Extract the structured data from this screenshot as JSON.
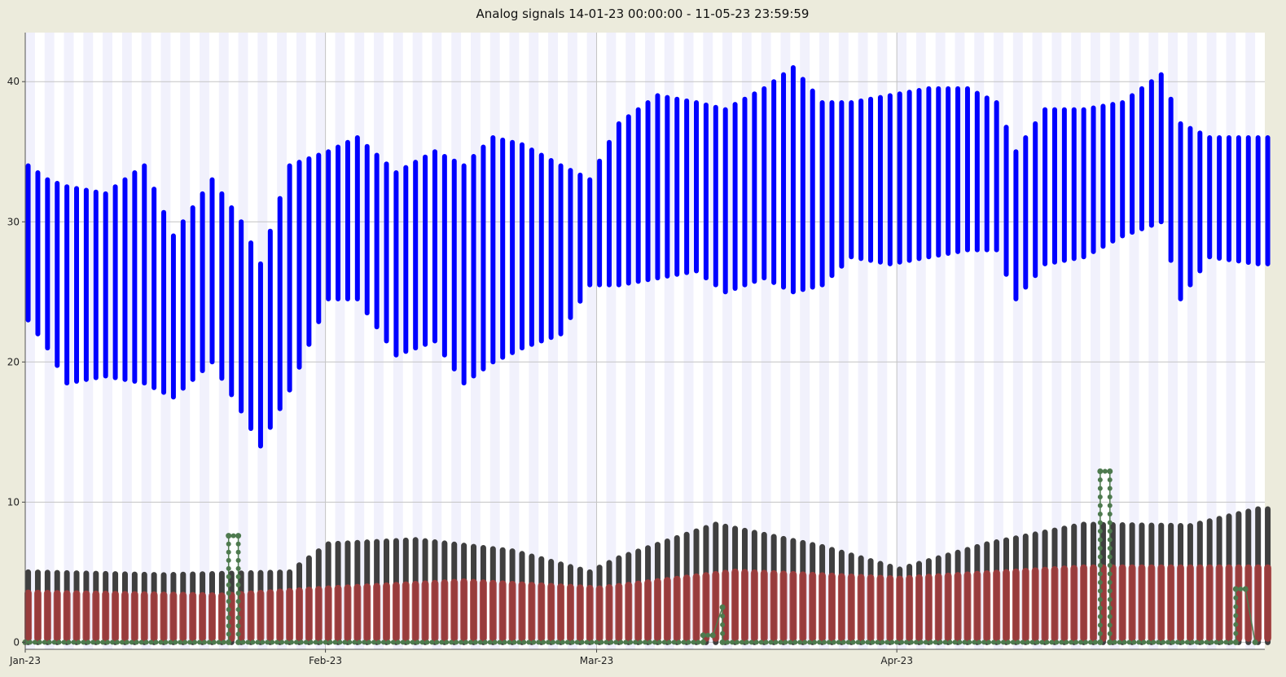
{
  "chart_data": {
    "type": "scatter",
    "title": "Analog signals 14-01-23 00:00:00 - 11-05-23 23:59:59",
    "xlabel": "",
    "ylabel": "",
    "x_range": [
      "2023-01-01",
      "2023-05-09"
    ],
    "ylim": [
      -0.5,
      43.5
    ],
    "grid": true,
    "legend": "none",
    "x_ticks": [
      {
        "date": "2023-01-01",
        "label": "Jan-23"
      },
      {
        "date": "2023-02-01",
        "label": "Feb-23"
      },
      {
        "date": "2023-03-01",
        "label": "Mar-23"
      },
      {
        "date": "2023-04-01",
        "label": "Apr-23"
      }
    ],
    "y_ticks": [
      0,
      10,
      20,
      30,
      40
    ],
    "series": [
      {
        "color": "#0000ff",
        "daily_range": [
          {
            "date": "2023-01-01",
            "min": 23,
            "max": 34
          },
          {
            "date": "2023-01-03",
            "min": 21,
            "max": 33
          },
          {
            "date": "2023-01-05",
            "min": 18.5,
            "max": 32.5
          },
          {
            "date": "2023-01-09",
            "min": 19,
            "max": 32
          },
          {
            "date": "2023-01-13",
            "min": 18.5,
            "max": 34
          },
          {
            "date": "2023-01-16",
            "min": 17.5,
            "max": 29
          },
          {
            "date": "2023-01-20",
            "min": 20,
            "max": 33
          },
          {
            "date": "2023-01-23",
            "min": 16.5,
            "max": 30
          },
          {
            "date": "2023-01-25",
            "min": 14,
            "max": 27
          },
          {
            "date": "2023-01-28",
            "min": 18,
            "max": 34
          },
          {
            "date": "2023-02-01",
            "min": 24.5,
            "max": 35
          },
          {
            "date": "2023-02-04",
            "min": 24.5,
            "max": 36
          },
          {
            "date": "2023-02-08",
            "min": 20.5,
            "max": 33.5
          },
          {
            "date": "2023-02-12",
            "min": 21.5,
            "max": 35
          },
          {
            "date": "2023-02-15",
            "min": 18.5,
            "max": 34
          },
          {
            "date": "2023-02-18",
            "min": 20,
            "max": 36
          },
          {
            "date": "2023-02-21",
            "min": 21,
            "max": 35.5
          },
          {
            "date": "2023-02-25",
            "min": 22,
            "max": 34
          },
          {
            "date": "2023-02-28",
            "min": 25.5,
            "max": 33
          },
          {
            "date": "2023-03-03",
            "min": 25.5,
            "max": 37
          },
          {
            "date": "2023-03-07",
            "min": 26,
            "max": 39
          },
          {
            "date": "2023-03-11",
            "min": 26.5,
            "max": 38.5
          },
          {
            "date": "2023-03-14",
            "min": 25,
            "max": 38
          },
          {
            "date": "2023-03-18",
            "min": 26,
            "max": 39.5
          },
          {
            "date": "2023-03-21",
            "min": 25,
            "max": 41
          },
          {
            "date": "2023-03-24",
            "min": 25.5,
            "max": 38.5
          },
          {
            "date": "2023-03-27",
            "min": 27.5,
            "max": 38.5
          },
          {
            "date": "2023-03-31",
            "min": 27,
            "max": 39
          },
          {
            "date": "2023-04-04",
            "min": 27.5,
            "max": 39.5
          },
          {
            "date": "2023-04-08",
            "min": 28,
            "max": 39.5
          },
          {
            "date": "2023-04-11",
            "min": 28,
            "max": 38.5
          },
          {
            "date": "2023-04-13",
            "min": 24.5,
            "max": 35
          },
          {
            "date": "2023-04-16",
            "min": 27,
            "max": 38
          },
          {
            "date": "2023-04-20",
            "min": 27.5,
            "max": 38
          },
          {
            "date": "2023-04-24",
            "min": 29,
            "max": 38.5
          },
          {
            "date": "2023-04-28",
            "min": 30,
            "max": 40.5
          },
          {
            "date": "2023-04-30",
            "min": 24.5,
            "max": 37
          },
          {
            "date": "2023-05-03",
            "min": 27.5,
            "max": 36
          },
          {
            "date": "2023-05-08",
            "min": 27,
            "max": 36
          }
        ]
      },
      {
        "color": "#3f3f3f",
        "daily_range": [
          {
            "date": "2023-01-01",
            "min": 0,
            "max": 5
          },
          {
            "date": "2023-01-15",
            "min": 0,
            "max": 4.8
          },
          {
            "date": "2023-01-28",
            "min": 0,
            "max": 5
          },
          {
            "date": "2023-02-01",
            "min": 0,
            "max": 7
          },
          {
            "date": "2023-02-10",
            "min": 0,
            "max": 7.3
          },
          {
            "date": "2023-02-20",
            "min": 0,
            "max": 6.5
          },
          {
            "date": "2023-02-28",
            "min": 0,
            "max": 5
          },
          {
            "date": "2023-03-03",
            "min": 0,
            "max": 6
          },
          {
            "date": "2023-03-13",
            "min": 0,
            "max": 8.4
          },
          {
            "date": "2023-03-24",
            "min": 0,
            "max": 6.8
          },
          {
            "date": "2023-04-01",
            "min": 0,
            "max": 5.2
          },
          {
            "date": "2023-04-10",
            "min": 0,
            "max": 7
          },
          {
            "date": "2023-04-20",
            "min": 0,
            "max": 8.4
          },
          {
            "date": "2023-05-01",
            "min": 0,
            "max": 8.3
          },
          {
            "date": "2023-05-08",
            "min": 0,
            "max": 9.5
          }
        ]
      },
      {
        "color": "#a83c3c",
        "daily_range": [
          {
            "date": "2023-01-01",
            "min": 0.3,
            "max": 3.5
          },
          {
            "date": "2023-01-21",
            "min": 0.3,
            "max": 3.3
          },
          {
            "date": "2023-02-01",
            "min": 0.3,
            "max": 3.8
          },
          {
            "date": "2023-02-15",
            "min": 0.3,
            "max": 4.3
          },
          {
            "date": "2023-03-01",
            "min": 0.3,
            "max": 3.8
          },
          {
            "date": "2023-03-15",
            "min": 0.3,
            "max": 5
          },
          {
            "date": "2023-04-01",
            "min": 0.3,
            "max": 4.5
          },
          {
            "date": "2023-04-20",
            "min": 0.3,
            "max": 5.3
          },
          {
            "date": "2023-05-08",
            "min": 0.3,
            "max": 5.3
          }
        ]
      },
      {
        "color": "#4e7a4e",
        "points": [
          {
            "date": "2023-01-01",
            "y": 0
          },
          {
            "date": "2023-01-22",
            "y": 0
          },
          {
            "date": "2023-01-22",
            "y": 7.6
          },
          {
            "date": "2023-01-23",
            "y": 7.6
          },
          {
            "date": "2023-01-23",
            "y": 0
          },
          {
            "date": "2023-03-12",
            "y": 0
          },
          {
            "date": "2023-03-12",
            "y": 0.5
          },
          {
            "date": "2023-03-13",
            "y": 0.5
          },
          {
            "date": "2023-03-14",
            "y": 2.5
          },
          {
            "date": "2023-03-14",
            "y": 0
          },
          {
            "date": "2023-04-22",
            "y": 0
          },
          {
            "date": "2023-04-22",
            "y": 12.2
          },
          {
            "date": "2023-04-23",
            "y": 12.2
          },
          {
            "date": "2023-04-23",
            "y": 0
          },
          {
            "date": "2023-05-06",
            "y": 0
          },
          {
            "date": "2023-05-06",
            "y": 3.8
          },
          {
            "date": "2023-05-07",
            "y": 3.8
          },
          {
            "date": "2023-05-08",
            "y": 0
          }
        ]
      }
    ]
  }
}
